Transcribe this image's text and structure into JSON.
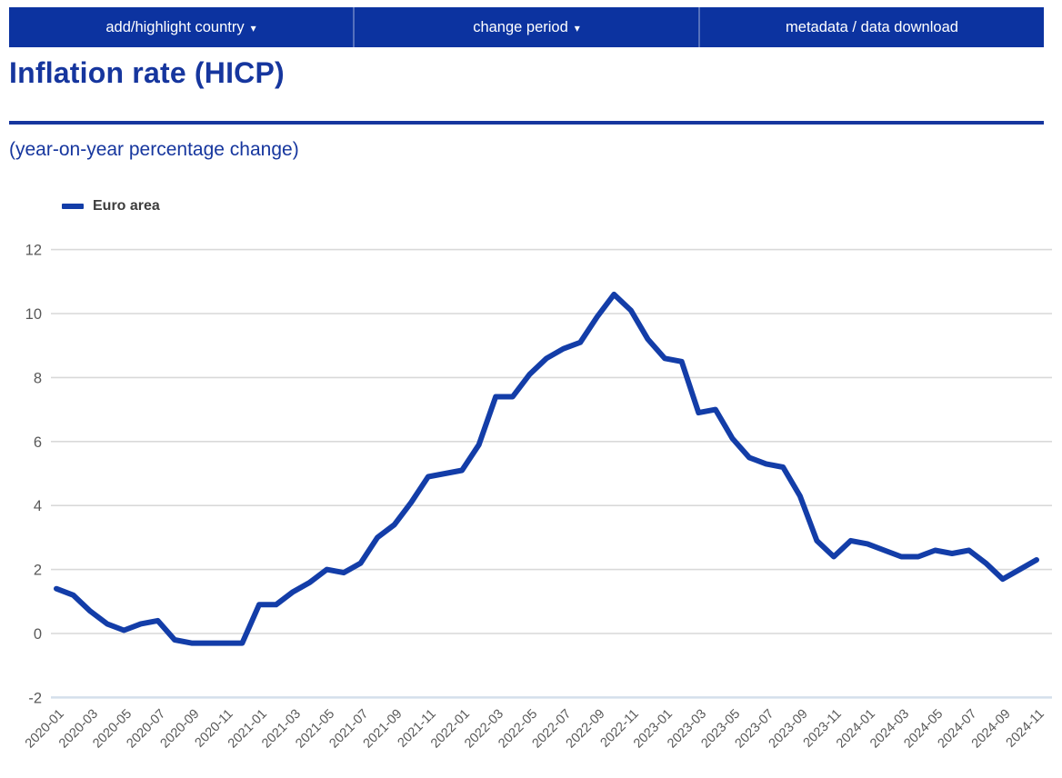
{
  "toolbar": {
    "background_color": "#0c33a0",
    "caret": "▾",
    "items": [
      {
        "label": "add/highlight country",
        "has_caret": true
      },
      {
        "label": "change period",
        "has_caret": true
      },
      {
        "label": "metadata / data download",
        "has_caret": false
      }
    ]
  },
  "header": {
    "title": "Inflation rate (HICP)",
    "subtitle": "(year-on-year percentage change)",
    "accent_color": "#16369e"
  },
  "legend": {
    "series_label": "Euro area",
    "marker_color": "#133da8"
  },
  "chart_data": {
    "type": "line",
    "title": "Inflation rate (HICP)",
    "subtitle": "(year-on-year percentage change)",
    "xlabel": "",
    "ylabel": "",
    "ylim": [
      -2,
      12
    ],
    "y_ticks": [
      12,
      10,
      8,
      6,
      4,
      2,
      0,
      -2
    ],
    "grid": true,
    "legend_position": "top-left",
    "line_color": "#133da8",
    "gridline_color": "#d9d9d9",
    "baseline_color": "#d4dfeb",
    "tick_label_color": "#595959",
    "x_tick_every": 2,
    "x": [
      "2020-01",
      "2020-02",
      "2020-03",
      "2020-04",
      "2020-05",
      "2020-06",
      "2020-07",
      "2020-08",
      "2020-09",
      "2020-10",
      "2020-11",
      "2020-12",
      "2021-01",
      "2021-02",
      "2021-03",
      "2021-04",
      "2021-05",
      "2021-06",
      "2021-07",
      "2021-08",
      "2021-09",
      "2021-10",
      "2021-11",
      "2021-12",
      "2022-01",
      "2022-02",
      "2022-03",
      "2022-04",
      "2022-05",
      "2022-06",
      "2022-07",
      "2022-08",
      "2022-09",
      "2022-10",
      "2022-11",
      "2022-12",
      "2023-01",
      "2023-02",
      "2023-03",
      "2023-04",
      "2023-05",
      "2023-06",
      "2023-07",
      "2023-08",
      "2023-09",
      "2023-10",
      "2023-11",
      "2023-12",
      "2024-01",
      "2024-02",
      "2024-03",
      "2024-04",
      "2024-05",
      "2024-06",
      "2024-07",
      "2024-08",
      "2024-09",
      "2024-10",
      "2024-11"
    ],
    "series": [
      {
        "name": "Euro area",
        "values": [
          1.4,
          1.2,
          0.7,
          0.3,
          0.1,
          0.3,
          0.4,
          -0.2,
          -0.3,
          -0.3,
          -0.3,
          -0.3,
          0.9,
          0.9,
          1.3,
          1.6,
          2.0,
          1.9,
          2.2,
          3.0,
          3.4,
          4.1,
          4.9,
          5.0,
          5.1,
          5.9,
          7.4,
          7.4,
          8.1,
          8.6,
          8.9,
          9.1,
          9.9,
          10.6,
          10.1,
          9.2,
          8.6,
          8.5,
          6.9,
          7.0,
          6.1,
          5.5,
          5.3,
          5.2,
          4.3,
          2.9,
          2.4,
          2.9,
          2.8,
          2.6,
          2.4,
          2.4,
          2.6,
          2.5,
          2.6,
          2.2,
          1.7,
          2.0,
          2.3
        ]
      }
    ]
  }
}
